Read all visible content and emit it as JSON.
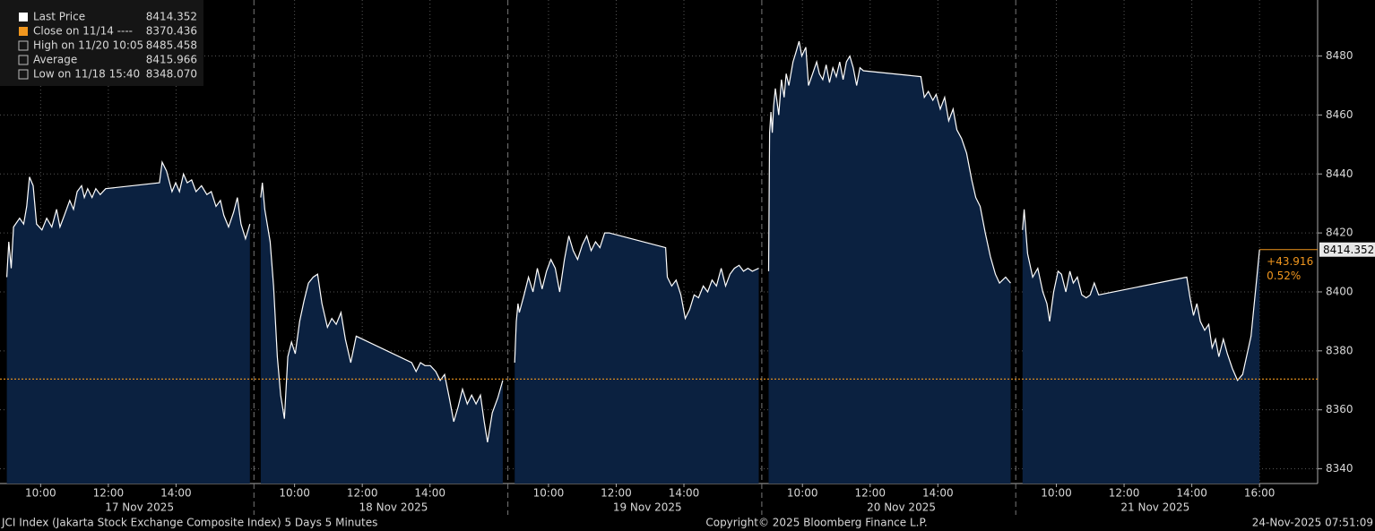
{
  "chart_data": {
    "type": "area",
    "line_color": "#ffffff",
    "fill_color": "#0b2140",
    "grid": true,
    "xlim": [
      8.8,
      16.3
    ],
    "ylim": [
      8335,
      8499
    ],
    "yticks": [
      8340,
      8360,
      8380,
      8400,
      8420,
      8440,
      8460,
      8480
    ],
    "close_line": 8370.436,
    "close_color": "#f0961e",
    "days": [
      {
        "label": "17 Nov 2025",
        "xticks": [
          {
            "value": 10,
            "label": "10:00"
          },
          {
            "value": 12,
            "label": "12:00"
          },
          {
            "value": 14,
            "label": "14:00"
          }
        ],
        "x": [
          9.0,
          9.06,
          9.13,
          9.2,
          9.38,
          9.5,
          9.59,
          9.67,
          9.78,
          9.88,
          10.04,
          10.18,
          10.33,
          10.47,
          10.57,
          10.7,
          10.86,
          10.97,
          11.08,
          11.21,
          11.29,
          11.39,
          11.52,
          11.63,
          11.76,
          11.92,
          13.51,
          13.59,
          13.72,
          13.88,
          13.99,
          14.1,
          14.22,
          14.33,
          14.46,
          14.59,
          14.75,
          14.91,
          15.04,
          15.18,
          15.31,
          15.41,
          15.55,
          15.7,
          15.81,
          15.92,
          16.05,
          16.18
        ],
        "values": [
          8405,
          8417,
          8408,
          8422,
          8425,
          8423,
          8429,
          8439,
          8436,
          8423,
          8421,
          8425,
          8422,
          8428,
          8422,
          8426,
          8431,
          8428,
          8434,
          8436,
          8432,
          8435,
          8432,
          8435,
          8433,
          8435,
          8437,
          8444,
          8441,
          8434,
          8437,
          8434,
          8440,
          8437,
          8438,
          8434,
          8436,
          8433,
          8434,
          8429,
          8431,
          8426,
          8422,
          8427,
          8432,
          8423,
          8418,
          8423
        ]
      },
      {
        "label": "18 Nov 2025",
        "xticks": [
          {
            "value": 10,
            "label": "10:00"
          },
          {
            "value": 12,
            "label": "12:00"
          },
          {
            "value": 14,
            "label": "14:00"
          }
        ],
        "x": [
          9.0,
          9.05,
          9.12,
          9.28,
          9.38,
          9.49,
          9.59,
          9.7,
          9.8,
          9.91,
          10.02,
          10.15,
          10.28,
          10.41,
          10.55,
          10.68,
          10.81,
          10.97,
          11.1,
          11.23,
          11.37,
          11.5,
          11.66,
          11.82,
          13.46,
          13.59,
          13.72,
          13.85,
          14.01,
          14.17,
          14.3,
          14.43,
          14.57,
          14.7,
          14.83,
          14.96,
          15.1,
          15.23,
          15.36,
          15.49,
          15.6,
          15.7,
          15.84,
          16.0,
          16.15
        ],
        "values": [
          8432,
          8437,
          8428,
          8417,
          8402,
          8378,
          8365,
          8357,
          8378,
          8383,
          8379,
          8390,
          8397,
          8403,
          8405,
          8406,
          8396,
          8388,
          8391,
          8389,
          8393,
          8384,
          8376,
          8385,
          8376,
          8373,
          8376,
          8375,
          8375,
          8373,
          8370,
          8372,
          8364,
          8356,
          8361,
          8367,
          8362,
          8365,
          8362,
          8365,
          8356,
          8349,
          8359,
          8364,
          8370
        ]
      },
      {
        "label": "19 Nov 2025",
        "xticks": [
          {
            "value": 10,
            "label": "10:00"
          },
          {
            "value": 12,
            "label": "12:00"
          },
          {
            "value": 14,
            "label": "14:00"
          }
        ],
        "x": [
          9.0,
          9.05,
          9.1,
          9.14,
          9.28,
          9.41,
          9.54,
          9.67,
          9.81,
          9.94,
          10.07,
          10.2,
          10.33,
          10.47,
          10.6,
          10.73,
          10.86,
          11.0,
          11.13,
          11.26,
          11.39,
          11.52,
          11.66,
          11.79,
          13.46,
          13.51,
          13.64,
          13.77,
          13.91,
          14.04,
          14.17,
          14.3,
          14.43,
          14.57,
          14.7,
          14.83,
          14.96,
          15.1,
          15.23,
          15.36,
          15.49,
          15.63,
          15.76,
          15.89,
          16.02,
          16.21
        ],
        "values": [
          8376,
          8390,
          8396,
          8393,
          8399,
          8405,
          8400,
          8408,
          8401,
          8407,
          8411,
          8408,
          8400,
          8411,
          8419,
          8414,
          8411,
          8416,
          8419,
          8414,
          8417,
          8415,
          8420,
          8420,
          8415,
          8405,
          8402,
          8404,
          8399,
          8391,
          8394,
          8399,
          8398,
          8402,
          8400,
          8404,
          8402,
          8408,
          8402,
          8406,
          8408,
          8409,
          8407,
          8408,
          8407,
          8408
        ]
      },
      {
        "label": "20 Nov 2025",
        "xticks": [
          {
            "value": 10,
            "label": "10:00"
          },
          {
            "value": 12,
            "label": "12:00"
          },
          {
            "value": 14,
            "label": "14:00"
          }
        ],
        "x": [
          9.0,
          9.03,
          9.07,
          9.11,
          9.15,
          9.2,
          9.3,
          9.38,
          9.46,
          9.52,
          9.6,
          9.72,
          9.8,
          9.9,
          9.98,
          10.1,
          10.18,
          10.3,
          10.42,
          10.5,
          10.6,
          10.7,
          10.8,
          10.9,
          11.0,
          11.1,
          11.2,
          11.3,
          11.4,
          11.5,
          11.6,
          11.7,
          11.8,
          13.5,
          13.6,
          13.72,
          13.85,
          13.95,
          14.07,
          14.2,
          14.32,
          14.45,
          14.56,
          14.7,
          14.85,
          15.0,
          15.12,
          15.25,
          15.4,
          15.55,
          15.7,
          15.82,
          16.0,
          16.15
        ],
        "values": [
          8407,
          8454,
          8461,
          8454,
          8463,
          8469,
          8460,
          8472,
          8466,
          8474,
          8470,
          8478,
          8481,
          8485,
          8480,
          8483,
          8470,
          8474,
          8478,
          8474,
          8472,
          8477,
          8471,
          8476,
          8473,
          8478,
          8472,
          8478,
          8480,
          8476,
          8470,
          8476,
          8475,
          8473,
          8466,
          8468,
          8465,
          8467,
          8462,
          8466,
          8458,
          8462,
          8455,
          8452,
          8447,
          8438,
          8432,
          8429,
          8420,
          8412,
          8406,
          8403,
          8405,
          8403
        ]
      },
      {
        "label": "21 Nov 2025",
        "xticks": [
          {
            "value": 10,
            "label": "10:00"
          },
          {
            "value": 12,
            "label": "12:00"
          },
          {
            "value": 14,
            "label": "14:00"
          },
          {
            "value": 16,
            "label": "16:00"
          }
        ],
        "x": [
          9.0,
          9.05,
          9.15,
          9.3,
          9.45,
          9.6,
          9.72,
          9.8,
          9.92,
          10.05,
          10.15,
          10.28,
          10.4,
          10.5,
          10.62,
          10.75,
          10.88,
          11.0,
          11.12,
          11.25,
          13.85,
          13.95,
          14.05,
          14.15,
          14.25,
          14.38,
          14.5,
          14.6,
          14.7,
          14.8,
          14.93,
          15.05,
          15.2,
          15.35,
          15.5,
          15.75,
          16.0
        ],
        "values": [
          8421,
          8428,
          8413,
          8405,
          8408,
          8400,
          8396,
          8390,
          8400,
          8407,
          8406,
          8400,
          8407,
          8403,
          8405,
          8399,
          8398,
          8399,
          8403,
          8399,
          8405,
          8398,
          8392,
          8396,
          8390,
          8387,
          8389,
          8381,
          8384,
          8378,
          8384,
          8379,
          8374,
          8370,
          8372,
          8385,
          8414.352
        ]
      }
    ],
    "last_label": "8414.352",
    "change_labels": [
      "+43.916",
      "0.52%"
    ],
    "legend": [
      {
        "text": "Last Price",
        "value_label": "8414.352",
        "color": "#ffffff"
      },
      {
        "text": "Close on 11/14 ----",
        "value_label": "8370.436",
        "color": "#f0961e"
      },
      {
        "text": "High on 11/20 10:05",
        "value_label": "8485.458",
        "color": "#bbbbbb"
      },
      {
        "text": "Average",
        "value_label": "8415.966",
        "color": "#bbbbbb"
      },
      {
        "text": "Low on 11/18 15:40",
        "value_label": "8348.070",
        "color": "#bbbbbb"
      }
    ],
    "footer": [
      "JCI Index (Jakarta Stock Exchange Composite Index) 5 Days 5 Minutes",
      "Copyright© 2025 Bloomberg Finance L.P.",
      "24-Nov-2025 07:51:09"
    ]
  }
}
